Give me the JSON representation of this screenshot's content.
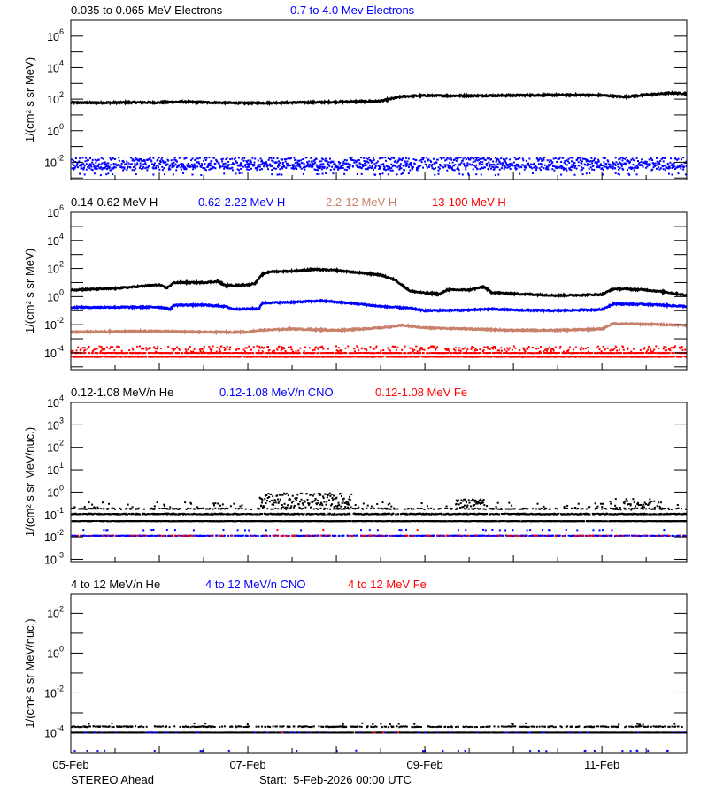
{
  "xaxis": {
    "xlim": [
      "2026-02-05 00:00",
      "2026-02-11 23:00"
    ],
    "ticks": [
      {
        "date": "2026-02-05 00:00",
        "label": "05-Feb"
      },
      {
        "date": "2026-02-07 00:00",
        "label": "07-Feb"
      },
      {
        "date": "2026-02-09 00:00",
        "label": "09-Feb"
      },
      {
        "date": "2026-02-11 00:00",
        "label": "11-Feb"
      }
    ]
  },
  "footer": {
    "spacecraft": "STEREO Ahead",
    "start": "Start:  5-Feb-2026 00:00 UTC"
  },
  "chart_data": [
    {
      "type": "line",
      "ylabel": "1/(cm² s sr MeV)",
      "yscale": "log",
      "ylim_log10": [
        -3.1,
        7
      ],
      "yticks": [
        {
          "base": "10",
          "exp": "6"
        },
        {
          "base": "10",
          "exp": "4"
        },
        {
          "base": "10",
          "exp": "2"
        },
        {
          "base": "10",
          "exp": "0"
        },
        {
          "base": "10",
          "exp": "-2"
        }
      ],
      "series": [
        {
          "name": "0.035 to 0.065 MeV Electrons",
          "color": "#000000",
          "style": "line",
          "points": [
            [
              "2026-02-05 00:00",
              60
            ],
            [
              "2026-02-05 06:00",
              58
            ],
            [
              "2026-02-05 12:00",
              60
            ],
            [
              "2026-02-05 18:00",
              62
            ],
            [
              "2026-02-06 00:00",
              60
            ],
            [
              "2026-02-06 06:00",
              68
            ],
            [
              "2026-02-06 12:00",
              62
            ],
            [
              "2026-02-06 18:00",
              58
            ],
            [
              "2026-02-07 00:00",
              55
            ],
            [
              "2026-02-07 06:00",
              58
            ],
            [
              "2026-02-07 12:00",
              60
            ],
            [
              "2026-02-07 18:00",
              62
            ],
            [
              "2026-02-08 00:00",
              65
            ],
            [
              "2026-02-08 06:00",
              70
            ],
            [
              "2026-02-08 12:00",
              75
            ],
            [
              "2026-02-08 18:00",
              150
            ],
            [
              "2026-02-09 00:00",
              170
            ],
            [
              "2026-02-09 06:00",
              165
            ],
            [
              "2026-02-09 12:00",
              165
            ],
            [
              "2026-02-09 18:00",
              170
            ],
            [
              "2026-02-10 00:00",
              175
            ],
            [
              "2026-02-10 06:00",
              180
            ],
            [
              "2026-02-10 12:00",
              185
            ],
            [
              "2026-02-10 18:00",
              185
            ],
            [
              "2026-02-11 00:00",
              175
            ],
            [
              "2026-02-11 06:00",
              140
            ],
            [
              "2026-02-11 12:00",
              190
            ],
            [
              "2026-02-11 18:00",
              240
            ],
            [
              "2026-02-11 23:00",
              230
            ]
          ]
        },
        {
          "name": "0.7 to 4.0 Mev Electrons",
          "color": "#0000ff",
          "style": "scatter",
          "levels": [
            {
              "range": [
                0.004,
                0.02
              ],
              "coverage": 0.95
            },
            {
              "range": [
                0.003,
                0.008
              ],
              "coverage": 0.5
            },
            {
              "range": [
                0.0015,
                0.002
              ],
              "coverage": 0.05
            }
          ]
        }
      ]
    },
    {
      "type": "line",
      "ylabel": "1/(cm² s sr MeV)",
      "yscale": "log",
      "ylim_log10": [
        -5.2,
        6
      ],
      "yticks": [
        {
          "base": "10",
          "exp": "6"
        },
        {
          "base": "10",
          "exp": "4"
        },
        {
          "base": "10",
          "exp": "2"
        },
        {
          "base": "10",
          "exp": "0"
        },
        {
          "base": "10",
          "exp": "-2"
        },
        {
          "base": "10",
          "exp": "-4"
        }
      ],
      "series": [
        {
          "name": "0.14-0.62 MeV H",
          "color": "#000000",
          "style": "line",
          "points": [
            [
              "2026-02-05 00:00",
              3
            ],
            [
              "2026-02-05 12:00",
              3.8
            ],
            [
              "2026-02-06 00:00",
              7
            ],
            [
              "2026-02-06 02:00",
              4
            ],
            [
              "2026-02-06 04:00",
              10
            ],
            [
              "2026-02-06 12:00",
              10
            ],
            [
              "2026-02-06 16:00",
              12
            ],
            [
              "2026-02-06 18:00",
              6
            ],
            [
              "2026-02-07 00:00",
              7
            ],
            [
              "2026-02-07 02:00",
              9
            ],
            [
              "2026-02-07 04:00",
              40
            ],
            [
              "2026-02-07 06:00",
              60
            ],
            [
              "2026-02-07 12:00",
              65
            ],
            [
              "2026-02-07 18:00",
              85
            ],
            [
              "2026-02-08 00:00",
              75
            ],
            [
              "2026-02-08 06:00",
              50
            ],
            [
              "2026-02-08 12:00",
              35
            ],
            [
              "2026-02-08 16:00",
              15
            ],
            [
              "2026-02-08 20:00",
              2.5
            ],
            [
              "2026-02-09 00:00",
              1.8
            ],
            [
              "2026-02-09 04:00",
              1.5
            ],
            [
              "2026-02-09 06:00",
              3
            ],
            [
              "2026-02-09 12:00",
              3
            ],
            [
              "2026-02-09 16:00",
              5
            ],
            [
              "2026-02-09 18:00",
              2
            ],
            [
              "2026-02-10 00:00",
              1.6
            ],
            [
              "2026-02-10 06:00",
              1.4
            ],
            [
              "2026-02-10 12:00",
              1.2
            ],
            [
              "2026-02-10 18:00",
              1.3
            ],
            [
              "2026-02-11 00:00",
              1.4
            ],
            [
              "2026-02-11 03:00",
              3.5
            ],
            [
              "2026-02-11 06:00",
              3.5
            ],
            [
              "2026-02-11 12:00",
              3
            ],
            [
              "2026-02-11 18:00",
              2
            ],
            [
              "2026-02-11 23:00",
              1.2
            ]
          ]
        },
        {
          "name": "0.62-2.22 MeV H",
          "color": "#0000ff",
          "style": "line",
          "points": [
            [
              "2026-02-05 00:00",
              0.17
            ],
            [
              "2026-02-06 00:00",
              0.18
            ],
            [
              "2026-02-06 03:00",
              0.13
            ],
            [
              "2026-02-06 04:00",
              0.25
            ],
            [
              "2026-02-06 12:00",
              0.25
            ],
            [
              "2026-02-06 18:00",
              0.2
            ],
            [
              "2026-02-06 20:00",
              0.13
            ],
            [
              "2026-02-07 00:00",
              0.13
            ],
            [
              "2026-02-07 03:00",
              0.14
            ],
            [
              "2026-02-07 04:00",
              0.35
            ],
            [
              "2026-02-07 12:00",
              0.4
            ],
            [
              "2026-02-07 20:00",
              0.5
            ],
            [
              "2026-02-08 06:00",
              0.3
            ],
            [
              "2026-02-08 12:00",
              0.2
            ],
            [
              "2026-02-08 20:00",
              0.15
            ],
            [
              "2026-02-09 00:00",
              0.1
            ],
            [
              "2026-02-09 12:00",
              0.11
            ],
            [
              "2026-02-09 18:00",
              0.13
            ],
            [
              "2026-02-10 00:00",
              0.11
            ],
            [
              "2026-02-10 12:00",
              0.1
            ],
            [
              "2026-02-11 00:00",
              0.12
            ],
            [
              "2026-02-11 03:00",
              0.3
            ],
            [
              "2026-02-11 12:00",
              0.28
            ],
            [
              "2026-02-11 23:00",
              0.2
            ]
          ]
        },
        {
          "name": "2.2-12 MeV H",
          "color": "#c8806a",
          "style": "line",
          "points": [
            [
              "2026-02-05 00:00",
              0.003
            ],
            [
              "2026-02-06 00:00",
              0.0035
            ],
            [
              "2026-02-06 12:00",
              0.003
            ],
            [
              "2026-02-07 00:00",
              0.003
            ],
            [
              "2026-02-07 03:00",
              0.004
            ],
            [
              "2026-02-07 12:00",
              0.005
            ],
            [
              "2026-02-08 00:00",
              0.004
            ],
            [
              "2026-02-08 12:00",
              0.006
            ],
            [
              "2026-02-08 18:00",
              0.009
            ],
            [
              "2026-02-09 00:00",
              0.006
            ],
            [
              "2026-02-09 12:00",
              0.005
            ],
            [
              "2026-02-10 00:00",
              0.004
            ],
            [
              "2026-02-10 12:00",
              0.004
            ],
            [
              "2026-02-11 00:00",
              0.005
            ],
            [
              "2026-02-11 03:00",
              0.012
            ],
            [
              "2026-02-11 12:00",
              0.011
            ],
            [
              "2026-02-11 18:00",
              0.01
            ],
            [
              "2026-02-11 23:00",
              0.009
            ]
          ]
        },
        {
          "name": "13-100 MeV H",
          "color": "#ff0000",
          "style": "scatter",
          "levels": [
            {
              "range": [
                0.00012,
                0.0003
              ],
              "coverage": 0.35
            },
            {
              "range": [
                9.5e-05,
                0.0001
              ],
              "coverage": 0.6
            },
            {
              "range": [
                5e-05,
                5.5e-05
              ],
              "coverage": 0.8
            }
          ]
        }
      ]
    },
    {
      "type": "scatter",
      "ylabel": "1/(cm² s sr MeV/nuc.)",
      "yscale": "log",
      "ylim_log10": [
        -3.1,
        4
      ],
      "yticks": [
        {
          "base": "10",
          "exp": "4"
        },
        {
          "base": "10",
          "exp": "3"
        },
        {
          "base": "10",
          "exp": "2"
        },
        {
          "base": "10",
          "exp": "1"
        },
        {
          "base": "10",
          "exp": "0"
        },
        {
          "base": "10",
          "exp": "-1"
        },
        {
          "base": "10",
          "exp": "-2"
        },
        {
          "base": "10",
          "exp": "-3"
        }
      ],
      "series": [
        {
          "name": "0.12-1.08 MeV/n He",
          "color": "#000000",
          "style": "scatter",
          "levels": [
            {
              "range": [
                0.05,
                0.052
              ],
              "coverage": 0.85
            },
            {
              "range": [
                0.1,
                0.11
              ],
              "coverage": 0.7
            },
            {
              "range": [
                0.17,
                0.19
              ],
              "coverage": 0.3
            },
            {
              "range": [
                0.2,
                0.35
              ],
              "coverage": 0.05
            },
            {
              "from": "2026-02-07 03:00",
              "to": "2026-02-08 04:00",
              "range": [
                0.2,
                0.9
              ],
              "coverage": 1.0
            },
            {
              "from": "2026-02-09 08:00",
              "to": "2026-02-09 16:00",
              "range": [
                0.2,
                0.5
              ],
              "coverage": 0.8
            },
            {
              "from": "2026-02-11 02:00",
              "to": "2026-02-11 16:00",
              "range": [
                0.15,
                0.5
              ],
              "coverage": 0.6
            }
          ]
        },
        {
          "name": "0.12-1.08 MeV/n CNO",
          "color": "#0000ff",
          "style": "scatter",
          "levels": [
            {
              "range": [
                0.011,
                0.0115
              ],
              "coverage": 0.55
            },
            {
              "range": [
                0.02,
                0.021
              ],
              "coverage": 0.04
            }
          ]
        },
        {
          "name": "0.12-1.08 MeV Fe",
          "color": "#ff0000",
          "style": "scatter",
          "levels": [
            {
              "range": [
                0.011,
                0.0115
              ],
              "coverage": 0.12
            },
            {
              "range": [
                0.02,
                0.021
              ],
              "coverage": 0.005
            }
          ]
        }
      ]
    },
    {
      "type": "scatter",
      "ylabel": "1/(cm² s sr MeV/nuc.)",
      "yscale": "log",
      "ylim_log10": [
        -5,
        2.95
      ],
      "yticks": [
        {
          "base": "10",
          "exp": "2"
        },
        {
          "base": "10",
          "exp": "0"
        },
        {
          "base": "10",
          "exp": "-2"
        },
        {
          "base": "10",
          "exp": "-4"
        }
      ],
      "series": [
        {
          "name": "4 to 12 MeV/n He",
          "color": "#000000",
          "style": "scatter",
          "levels": [
            {
              "range": [
                0.0001,
                0.000101
              ],
              "coverage": 0.9
            },
            {
              "range": [
                0.00019,
                0.00021
              ],
              "coverage": 0.35
            },
            {
              "range": [
                0.00025,
                0.0003
              ],
              "coverage": 0.02
            }
          ]
        },
        {
          "name": "4 to 12 MeV/n CNO",
          "color": "#0000ff",
          "style": "scatter",
          "levels": [
            {
              "range": [
                0.0001,
                0.000101
              ],
              "coverage": 0.03
            },
            {
              "range": [
                1.2e-05,
                1.25e-05
              ],
              "coverage": 0.02
            }
          ]
        },
        {
          "name": "4 to 12 MeV Fe",
          "color": "#ff0000",
          "style": "scatter",
          "levels": [
            {
              "range": [
                0.0001,
                0.000101
              ],
              "coverage": 0.005
            }
          ]
        }
      ]
    }
  ]
}
